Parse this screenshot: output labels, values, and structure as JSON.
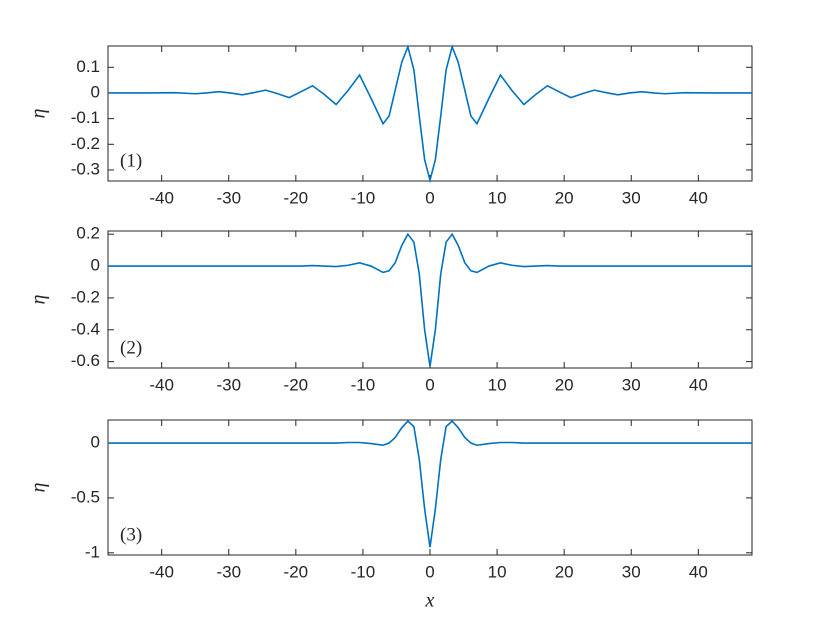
{
  "chart_data": [
    {
      "type": "line",
      "ylabel": "η",
      "annotation": "(1)",
      "color": "#0072bd",
      "x": [
        -48,
        -42,
        -38,
        -35,
        -33.3,
        -31.5,
        -29.8,
        -28,
        -26.3,
        -24.5,
        -22.8,
        -21,
        -19.3,
        -17.5,
        -15.8,
        -14,
        -12.2,
        -10.5,
        -8.8,
        -7,
        -6.1,
        -5.2,
        -4.2,
        -3.3,
        -2.4,
        -1.6,
        -0.8,
        0,
        0.8,
        1.6,
        2.4,
        3.3,
        4.2,
        5.2,
        6.1,
        7,
        8.8,
        10.5,
        12.2,
        14,
        15.8,
        17.5,
        19.3,
        21,
        22.8,
        24.5,
        26.3,
        28,
        29.8,
        31.5,
        33.3,
        35,
        38,
        42,
        48
      ],
      "values": [
        0,
        0,
        0.001,
        -0.003,
        0,
        0.005,
        0,
        -0.007,
        0.001,
        0.011,
        -0.002,
        -0.018,
        0.004,
        0.028,
        -0.005,
        -0.045,
        0.01,
        0.07,
        -0.02,
        -0.12,
        -0.09,
        0.01,
        0.12,
        0.18,
        0.09,
        -0.09,
        -0.26,
        -0.34,
        -0.26,
        -0.09,
        0.09,
        0.18,
        0.12,
        0.01,
        -0.09,
        -0.12,
        -0.02,
        0.07,
        0.01,
        -0.045,
        -0.005,
        0.028,
        0.004,
        -0.018,
        -0.002,
        0.011,
        0.001,
        -0.007,
        0,
        0.005,
        0,
        -0.003,
        0.001,
        0,
        0
      ],
      "xlim": [
        -48,
        48
      ],
      "xticks": [
        -40,
        -30,
        -20,
        -10,
        0,
        10,
        20,
        30,
        40
      ],
      "ylim": [
        -0.343,
        0.183
      ],
      "yticks": [
        0.1,
        0,
        -0.1,
        -0.2,
        -0.3
      ]
    },
    {
      "type": "line",
      "ylabel": "η",
      "annotation": "(2)",
      "color": "#0072bd",
      "x": [
        -48,
        -42,
        -38,
        -35,
        -33.3,
        -31.5,
        -29.8,
        -28,
        -26.3,
        -24.5,
        -22.8,
        -21,
        -19.3,
        -17.5,
        -15.8,
        -14,
        -12.2,
        -10.5,
        -8.8,
        -7,
        -6.1,
        -5.2,
        -4.2,
        -3.3,
        -2.4,
        -1.6,
        -0.8,
        0,
        0.8,
        1.6,
        2.4,
        3.3,
        4.2,
        5.2,
        6.1,
        7,
        8.8,
        10.5,
        12.2,
        14,
        15.8,
        17.5,
        19.3,
        21,
        22.8,
        24.5,
        26.3,
        28,
        29.8,
        31.5,
        33.3,
        35,
        38,
        42,
        48
      ],
      "values": [
        0,
        0,
        0,
        0,
        0,
        0,
        0,
        0,
        0,
        0,
        0,
        0,
        0,
        0.003,
        0,
        -0.003,
        0.005,
        0.02,
        0,
        -0.04,
        -0.03,
        0.02,
        0.13,
        0.2,
        0.15,
        -0.05,
        -0.4,
        -0.63,
        -0.4,
        -0.05,
        0.15,
        0.2,
        0.13,
        0.02,
        -0.03,
        -0.04,
        0,
        0.02,
        0.005,
        -0.003,
        0,
        0.003,
        0,
        0,
        0,
        0,
        0,
        0,
        0,
        0,
        0,
        0,
        0,
        0,
        0
      ],
      "xlim": [
        -48,
        48
      ],
      "xticks": [
        -40,
        -30,
        -20,
        -10,
        0,
        10,
        20,
        30,
        40
      ],
      "ylim": [
        -0.64,
        0.22
      ],
      "yticks": [
        0.2,
        0,
        -0.2,
        -0.4,
        -0.6
      ]
    },
    {
      "type": "line",
      "ylabel": "η",
      "xlabel": "x",
      "annotation": "(3)",
      "color": "#0072bd",
      "x": [
        -48,
        -42,
        -38,
        -35,
        -33.3,
        -31.5,
        -29.8,
        -28,
        -26.3,
        -24.5,
        -22.8,
        -21,
        -19.3,
        -17.5,
        -15.8,
        -14,
        -12.2,
        -10.5,
        -8.8,
        -7,
        -6.1,
        -5.2,
        -4.2,
        -3.3,
        -2.4,
        -1.6,
        -0.8,
        0,
        0.8,
        1.6,
        2.4,
        3.3,
        4.2,
        5.2,
        6.1,
        7,
        8.8,
        10.5,
        12.2,
        14,
        15.8,
        17.5,
        19.3,
        21,
        22.8,
        24.5,
        26.3,
        28,
        29.8,
        31.5,
        33.3,
        35,
        38,
        42,
        48
      ],
      "values": [
        0,
        0,
        0,
        0,
        0,
        0,
        0,
        0,
        0,
        0,
        0,
        0,
        0,
        0,
        0,
        0,
        0.005,
        0.005,
        -0.005,
        -0.02,
        0,
        0.05,
        0.14,
        0.2,
        0.15,
        -0.15,
        -0.6,
        -0.95,
        -0.6,
        -0.15,
        0.15,
        0.2,
        0.14,
        0.05,
        0,
        -0.02,
        -0.005,
        0.005,
        0.005,
        0,
        0,
        0,
        0,
        0,
        0,
        0,
        0,
        0,
        0,
        0,
        0,
        0,
        0,
        0,
        0
      ],
      "xlim": [
        -48,
        48
      ],
      "xticks": [
        -40,
        -30,
        -20,
        -10,
        0,
        10,
        20,
        30,
        40
      ],
      "ylim": [
        -1.02,
        0.21
      ],
      "yticks": [
        0,
        -0.5,
        -1
      ]
    }
  ]
}
